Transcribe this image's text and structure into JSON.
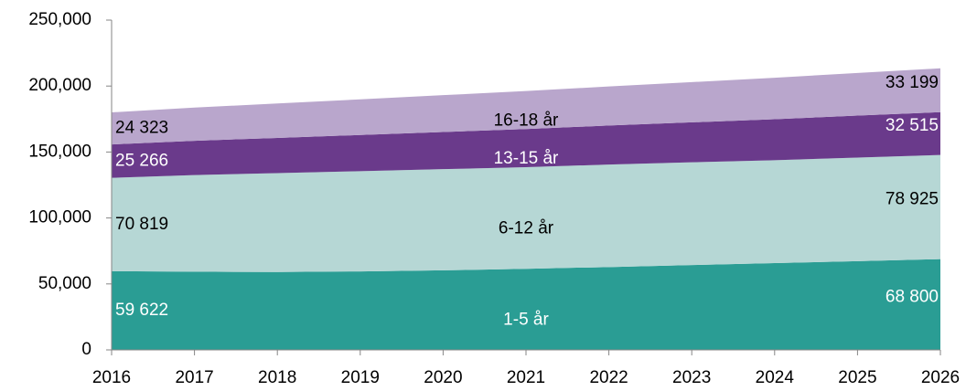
{
  "chart_data": {
    "type": "stacked_area",
    "x": [
      2016,
      2017,
      2018,
      2019,
      2020,
      2021,
      2022,
      2023,
      2024,
      2025,
      2026
    ],
    "xlim": [
      2016,
      2026
    ],
    "xticks": [
      2016,
      2017,
      2018,
      2019,
      2020,
      2021,
      2022,
      2023,
      2024,
      2025,
      2026
    ],
    "ylim": [
      0,
      250000
    ],
    "yticks": [
      0,
      {
        "value": 50000,
        "label": "50,000"
      },
      {
        "value": 100000,
        "label": "100,000"
      },
      {
        "value": 150000,
        "label": "150,000"
      },
      {
        "value": 200000,
        "label": "200,000"
      },
      {
        "value": 250000,
        "label": "250,000"
      }
    ],
    "series": [
      {
        "name": "1-5 år",
        "color": "#2a9d94",
        "label_color": "#ffffff",
        "values": [
          59622,
          59300,
          59000,
          59500,
          60300,
          61500,
          62800,
          64300,
          65800,
          67300,
          68800
        ],
        "value_labels": [
          "59 622",
          null,
          null,
          null,
          null,
          null,
          null,
          null,
          null,
          null,
          "68 800"
        ]
      },
      {
        "name": "6-12 år",
        "color": "#b6d7d5",
        "label_color": "#000000",
        "values": [
          70819,
          73200,
          75000,
          76000,
          76700,
          77000,
          77700,
          77900,
          78000,
          78500,
          78925
        ],
        "value_labels": [
          "70 819",
          null,
          null,
          null,
          null,
          null,
          null,
          null,
          null,
          null,
          "78 925"
        ]
      },
      {
        "name": "13-15 år",
        "color": "#6a3a8b",
        "label_color": "#ffffff",
        "values": [
          25266,
          26000,
          26700,
          27400,
          28200,
          28900,
          29600,
          30300,
          31100,
          31800,
          32515
        ],
        "value_labels": [
          "25 266",
          null,
          null,
          null,
          null,
          null,
          null,
          null,
          null,
          null,
          "32 515"
        ]
      },
      {
        "name": "16-18 år",
        "color": "#b9a6cc",
        "label_color": "#000000",
        "values": [
          24323,
          25200,
          26100,
          27000,
          27900,
          28800,
          29600,
          30500,
          31400,
          32300,
          33199
        ],
        "value_labels": [
          "24 323",
          null,
          null,
          null,
          null,
          null,
          null,
          null,
          null,
          null,
          "33 199"
        ]
      }
    ]
  }
}
